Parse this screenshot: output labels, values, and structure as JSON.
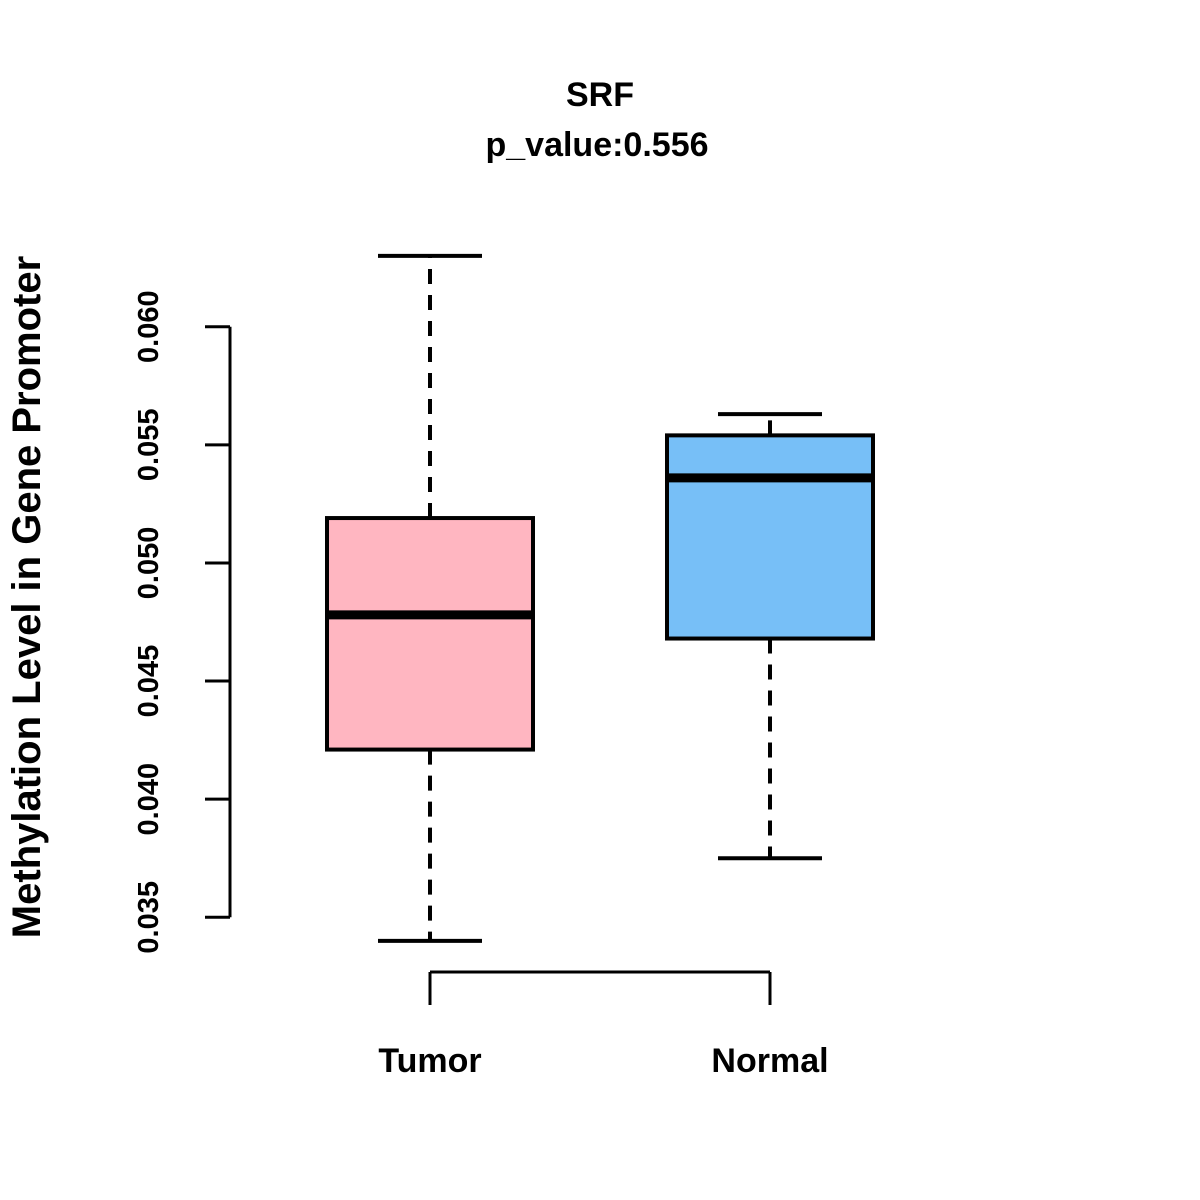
{
  "figure": {
    "background": "#FFFFFF"
  },
  "chart_data": {
    "type": "boxplot",
    "title": "SRF",
    "subtitle": "p_value:0.556",
    "ylabel": "Methylation Level in Gene Promoter",
    "xlabel": "",
    "categories": [
      "Tumor",
      "Normal"
    ],
    "yticks": [
      "0.035",
      "0.040",
      "0.045",
      "0.050",
      "0.055",
      "0.060"
    ],
    "ylim": [
      0.0335,
      0.0635
    ],
    "grid": false,
    "legend": "none",
    "series": [
      {
        "name": "Tumor",
        "fill": "#FFB6C1",
        "whisker_low": 0.034,
        "q1": 0.0421,
        "median": 0.0478,
        "q3": 0.0519,
        "whisker_high": 0.063
      },
      {
        "name": "Normal",
        "fill": "#77BFF7",
        "whisker_low": 0.0375,
        "q1": 0.0468,
        "median": 0.0536,
        "q3": 0.0554,
        "whisker_high": 0.0563
      }
    ],
    "stroke_color": "#000000"
  }
}
